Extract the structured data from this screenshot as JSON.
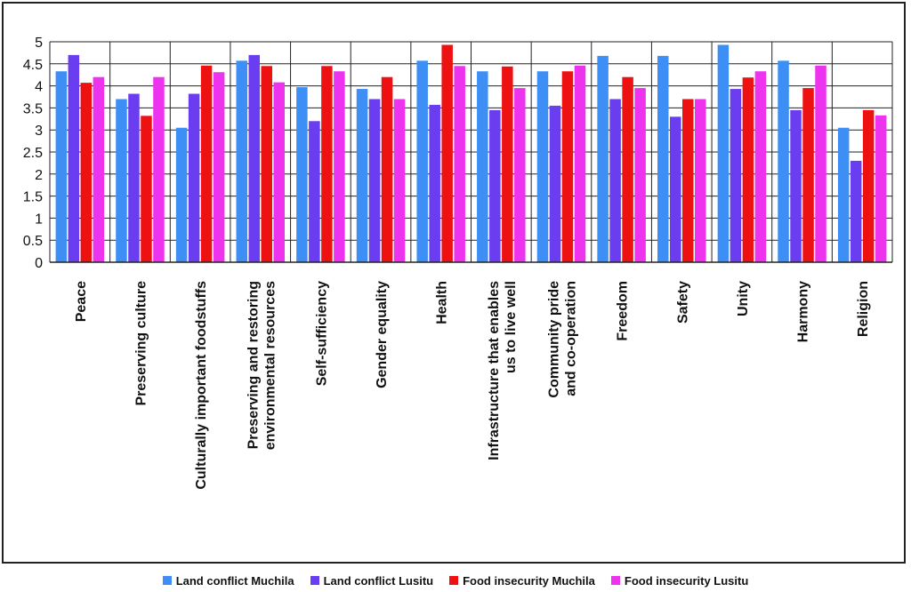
{
  "chart_data": {
    "type": "bar",
    "categories": [
      "Peace",
      "Preserving culture",
      "Culturally important foodstuffs",
      "Preserving and restoring environmental resources",
      "Self-sufficiency",
      "Gender equality",
      "Health",
      "Infrastructure that enables us to live well",
      "Community pride and co-operation",
      "Freedom",
      "Safety",
      "Unity",
      "Harmony",
      "Religion"
    ],
    "category_label_lines": [
      [
        "Peace"
      ],
      [
        "Preserving culture"
      ],
      [
        "Culturally important foodstuffs"
      ],
      [
        "Preserving and restoring",
        "environmental resources"
      ],
      [
        "Self-sufficiency"
      ],
      [
        "Gender equality"
      ],
      [
        "Health"
      ],
      [
        "Infrastructure that enables",
        "us to live well"
      ],
      [
        "Community pride",
        "and co-operation"
      ],
      [
        "Freedom"
      ],
      [
        "Safety"
      ],
      [
        "Unity"
      ],
      [
        "Harmony"
      ],
      [
        "Religion"
      ]
    ],
    "series": [
      {
        "name": "Land conflict Muchila",
        "color": "#3d8ff5",
        "values": [
          4.33,
          3.7,
          3.05,
          4.57,
          3.97,
          3.93,
          4.57,
          4.33,
          4.33,
          4.68,
          4.68,
          4.93,
          4.57,
          3.05
        ]
      },
      {
        "name": "Land conflict Lusitu",
        "color": "#6b3df0",
        "values": [
          4.7,
          3.82,
          3.82,
          4.7,
          3.2,
          3.7,
          3.57,
          3.45,
          3.55,
          3.7,
          3.3,
          3.93,
          3.45,
          2.3
        ]
      },
      {
        "name": "Food insecurity Muchila",
        "color": "#ee1111",
        "values": [
          4.07,
          3.32,
          4.46,
          4.45,
          4.45,
          4.2,
          4.93,
          4.44,
          4.33,
          4.2,
          3.7,
          4.19,
          3.95,
          3.45
        ]
      },
      {
        "name": "Food insecurity Lusitu",
        "color": "#ee33ee",
        "values": [
          4.2,
          4.2,
          4.31,
          4.08,
          4.33,
          3.7,
          4.45,
          3.95,
          4.46,
          3.95,
          3.7,
          4.33,
          4.46,
          3.33
        ]
      }
    ],
    "yticks": [
      "0",
      "0.5",
      "1",
      "1.5",
      "2",
      "2.5",
      "3",
      "3.5",
      "4",
      "4.5",
      "5"
    ],
    "ylim": [
      0,
      5
    ],
    "grid": true,
    "legend_position": "bottom",
    "title": "",
    "xlabel": "",
    "ylabel": ""
  }
}
